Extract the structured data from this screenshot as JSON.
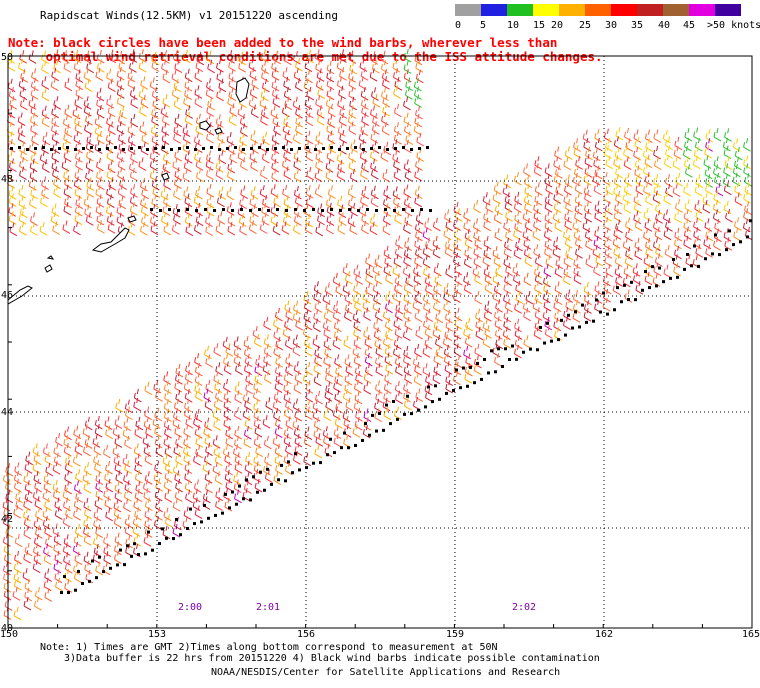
{
  "title": "Rapidscat Winds(12.5KM) v1 20151220 ascending",
  "note_line1": "Note: black circles have been added to the wind barbs, wherever less than",
  "note_line2": "     optimal wind retrieval conditions are met due to the ISS attitude changes.",
  "legend": {
    "labels": [
      "0",
      "5",
      "10",
      "15",
      "20",
      "25",
      "30",
      "35",
      "40",
      "45",
      ">50 knots"
    ],
    "colors": [
      "#505050",
      "#a0a0a0",
      "#2020e0",
      "#20c020",
      "#ffff00",
      "#ffb000",
      "#ff6000",
      "#ff0000",
      "#c02020",
      "#a06030",
      "#e000e0",
      "#4000a0"
    ]
  },
  "y_axis": [
    "50",
    "48",
    "46",
    "44",
    "42",
    "40"
  ],
  "x_axis": [
    "150",
    "153",
    "156",
    "159",
    "162",
    "165"
  ],
  "times": [
    "2:00",
    "2:01",
    "2:02"
  ],
  "footer": {
    "line1": "Note: 1) Times are GMT 2)Times along bottom correspond to measurement at 50N",
    "line2": "3)Data buffer is 22 hrs from 20151220 4) Black wind barbs indicate possible contamination",
    "line3": "NOAA/NESDIS/Center for Satellite Applications and Research"
  }
}
